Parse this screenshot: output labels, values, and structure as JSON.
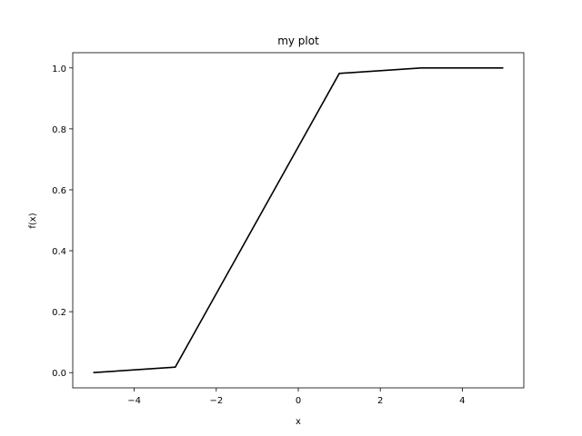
{
  "chart_data": {
    "type": "line",
    "title": "my plot",
    "xlabel": "x",
    "ylabel": "f(x)",
    "xlim": [
      -5.5,
      5.5
    ],
    "ylim": [
      -0.05,
      1.05
    ],
    "grid": false,
    "xticks": [
      -4,
      -2,
      0,
      2,
      4
    ],
    "xtick_labels": [
      "−4",
      "−2",
      "0",
      "2",
      "4"
    ],
    "yticks": [
      0.0,
      0.2,
      0.4,
      0.6,
      0.8,
      1.0
    ],
    "ytick_labels": [
      "0.0",
      "0.2",
      "0.4",
      "0.6",
      "0.8",
      "1.0"
    ],
    "series": [
      {
        "color": "#000000",
        "x": [
          -5,
          -3,
          1,
          3,
          5
        ],
        "y": [
          0.0,
          0.018,
          0.982,
          1.0,
          1.0
        ]
      }
    ]
  }
}
